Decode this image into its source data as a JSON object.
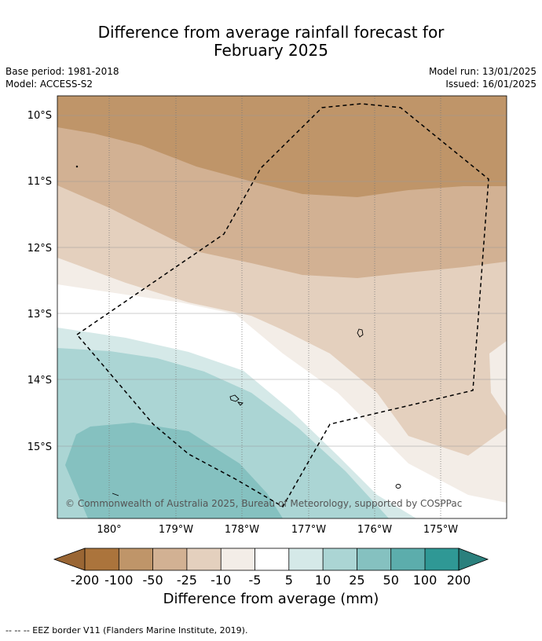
{
  "title": {
    "line1": "Difference from average rainfall forecast for",
    "line2": "February 2025"
  },
  "meta": {
    "base_period": "Base period: 1981-2018",
    "model": "Model: ACCESS-S2",
    "model_run": "Model run: 13/01/2025",
    "issued": "Issued: 16/01/2025"
  },
  "map": {
    "lat_labels": [
      "10°S",
      "11°S",
      "12°S",
      "13°S",
      "14°S",
      "15°S"
    ],
    "lon_labels": [
      "180°",
      "179°W",
      "178°W",
      "177°W",
      "176°W",
      "175°W"
    ],
    "copyright": "© Commonwealth of Australia 2025, Bureau of Meteorology, supported by COSPPac",
    "extent": {
      "lon_min": -180.8,
      "lon_max": -174.0,
      "lat_min": -16.1,
      "lat_max": -9.7
    },
    "grid": true
  },
  "colorbar": {
    "ticks": [
      "-200",
      "-100",
      "-50",
      "-25",
      "-10",
      "-5",
      "5",
      "10",
      "25",
      "50",
      "100",
      "200"
    ],
    "colors": [
      "#ab743c",
      "#bf9569",
      "#d2b193",
      "#e4d0be",
      "#f3ede7",
      "#ffffff",
      "#d5e9e8",
      "#abd5d4",
      "#85c1c0",
      "#5cadac",
      "#2f9895"
    ],
    "underflow_color": "#9a6634",
    "overflow_color": "#2b807d",
    "title": "Difference from average (mm)"
  },
  "footer": "--  --  -- EEZ border V11 (Flanders Marine Institute, 2019)."
}
